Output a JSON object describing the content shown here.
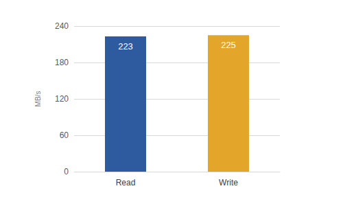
{
  "chart_data": {
    "type": "bar",
    "y_label": "MB/s",
    "categories": [
      "Read",
      "Write"
    ],
    "values": [
      223,
      225
    ],
    "colors": [
      "#2e5aa0",
      "#e3a62a"
    ],
    "ylim": [
      0,
      240
    ],
    "yticks": [
      0,
      60,
      120,
      180,
      240
    ],
    "grid": true,
    "data_labels": true
  }
}
